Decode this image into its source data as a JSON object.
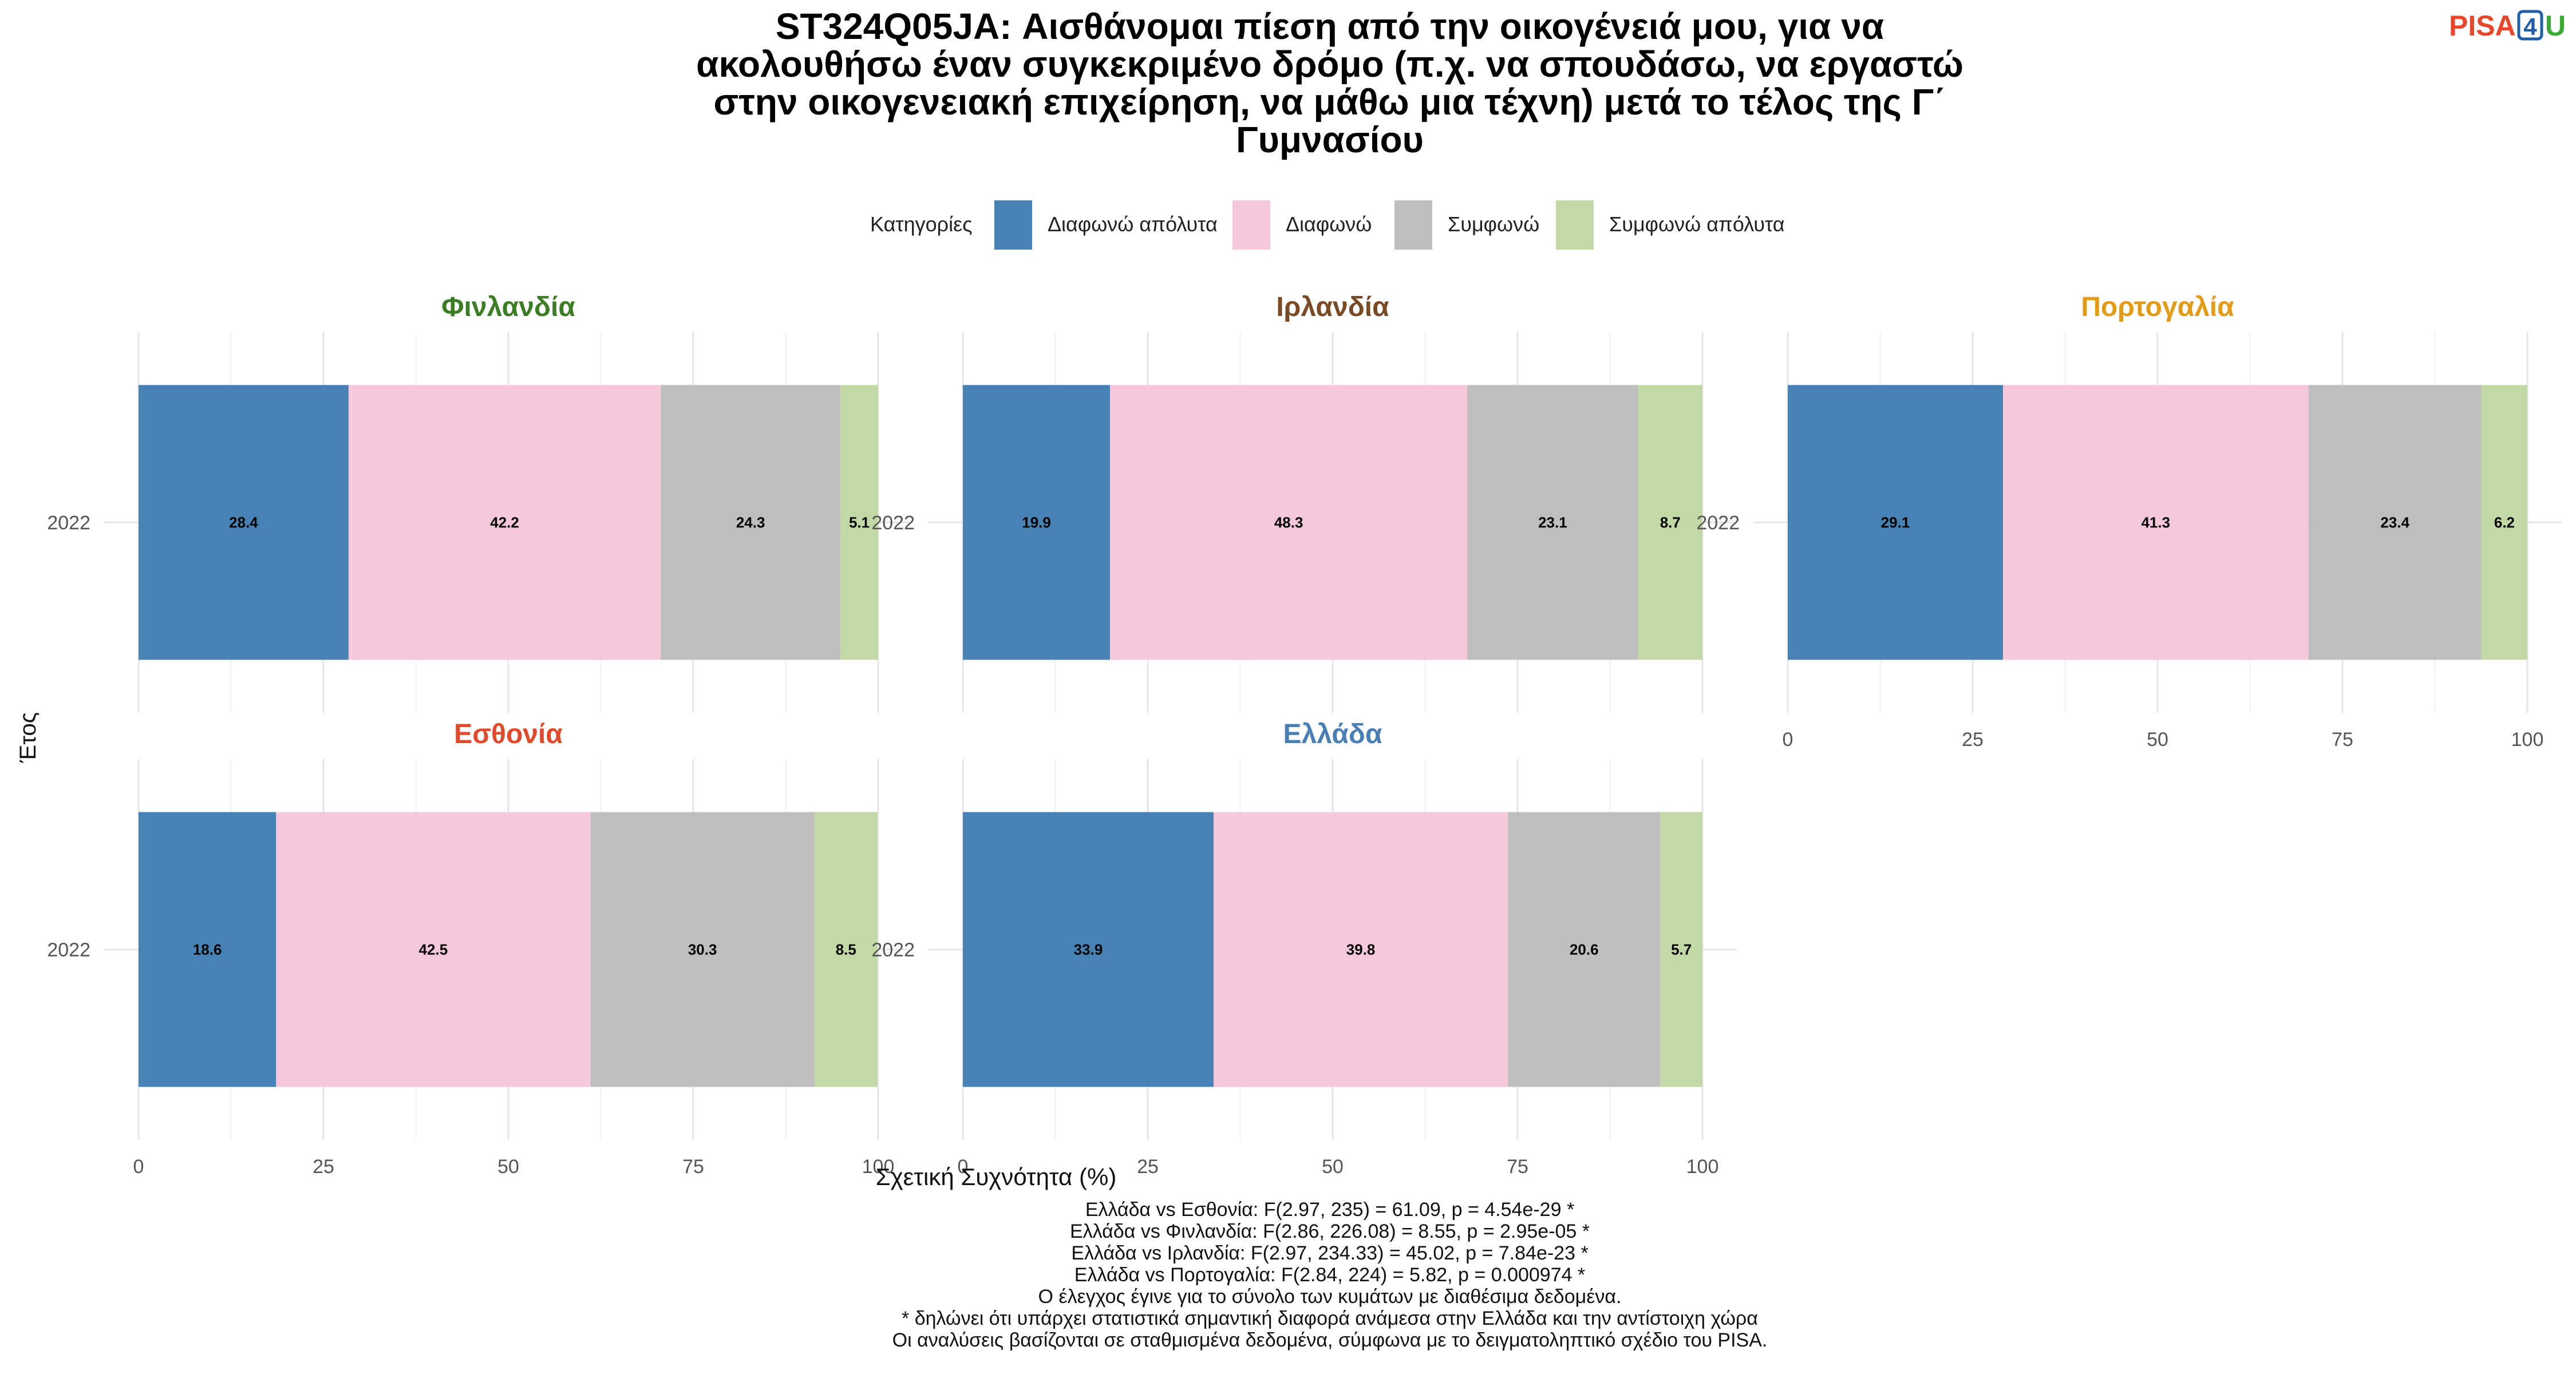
{
  "logo": {
    "pisa": "PISA",
    "four": "4",
    "u": "U",
    "colors": {
      "pisa": "#e8472b",
      "four": "#1f5fa8",
      "u": "#3aa935"
    }
  },
  "chart_data": {
    "type": "bar",
    "orientation": "horizontal-stacked",
    "title_lines": [
      "ST324Q05JA: Αισθάνομαι πίεση από την οικογένειά μου, για να",
      "ακολουθήσω έναν συγκεκριμένο δρόμο (π.χ. να σπουδάσω, να εργαστώ",
      "στην οικογενειακή επιχείρηση, να μάθω μια τέχνη) μετά το τέλος της Γ΄",
      "Γυμνασίου"
    ],
    "legend": {
      "title": "Κατηγορίες",
      "position": "top",
      "items": [
        {
          "label": "Διαφωνώ απόλυτα",
          "color": "#4682b4"
        },
        {
          "label": "Διαφωνώ",
          "color": "#f7c8dc"
        },
        {
          "label": "Συμφωνώ",
          "color": "#bebebe"
        },
        {
          "label": "Συμφωνώ απόλυτα",
          "color": "#c3d9a5"
        }
      ]
    },
    "xlabel": "Σχετική Συχνότητα (%)",
    "ylabel": "Έτος",
    "xlim": [
      0,
      100
    ],
    "xticks": [
      "0",
      "25",
      "50",
      "75",
      "100"
    ],
    "grid": true,
    "panels": [
      {
        "name": "Φινλανδία",
        "color": "#3a7d22",
        "year": "2022",
        "values": [
          28.4,
          42.2,
          24.3,
          5.1
        ],
        "labels": [
          "28.4",
          "42.2",
          "24.3",
          "5.1"
        ]
      },
      {
        "name": "Ιρλανδία",
        "color": "#7a4a24",
        "year": "2022",
        "values": [
          19.9,
          48.3,
          23.1,
          8.7
        ],
        "labels": [
          "19.9",
          "48.3",
          "23.1",
          "8.7"
        ]
      },
      {
        "name": "Πορτογαλία",
        "color": "#e39b17",
        "year": "2022",
        "values": [
          29.1,
          41.3,
          23.4,
          6.2
        ],
        "labels": [
          "29.1",
          "41.3",
          "23.4",
          "6.2"
        ]
      },
      {
        "name": "Εσθονία",
        "color": "#e04a2c",
        "year": "2022",
        "values": [
          18.6,
          42.5,
          30.3,
          8.5
        ],
        "labels": [
          "18.6",
          "42.5",
          "30.3",
          "8.5"
        ]
      },
      {
        "name": "Ελλάδα",
        "color": "#4a7fb5",
        "year": "2022",
        "values": [
          33.9,
          39.8,
          20.6,
          5.7
        ],
        "labels": [
          "33.9",
          "39.8",
          "20.6",
          "5.7"
        ]
      }
    ],
    "caption_lines": [
      "Ελλάδα vs Εσθονία: F(2.97, 235) = 61.09, p = 4.54e-29 *",
      "Ελλάδα vs Φινλανδία: F(2.86, 226.08) = 8.55, p = 2.95e-05 *",
      "Ελλάδα vs Ιρλανδία: F(2.97, 234.33) = 45.02, p = 7.84e-23 *",
      "Ελλάδα vs Πορτογαλία: F(2.84, 224) = 5.82, p = 0.000974 *",
      "Ο έλεγχος έγινε για το σύνολο των κυμάτων με διαθέσιμα δεδομένα.",
      "* δηλώνει ότι υπάρχει στατιστικά σημαντική διαφορά ανάμεσα στην Ελλάδα και την αντίστοιχη χώρα",
      "Οι αναλύσεις βασίζονται σε σταθμισμένα δεδομένα, σύμφωνα με το δειγματοληπτικό σχέδιο του PISA."
    ]
  }
}
